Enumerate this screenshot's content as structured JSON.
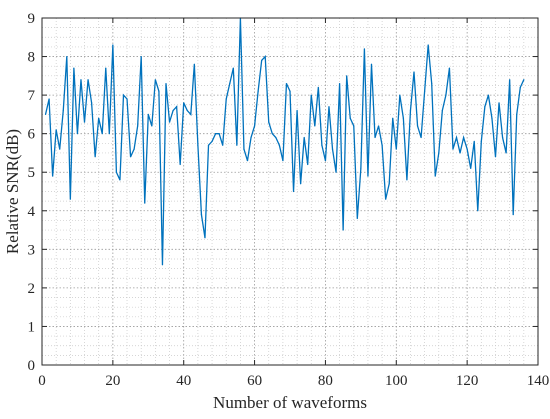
{
  "chart_data": {
    "type": "line",
    "title": "",
    "xlabel": "Number of waveforms",
    "ylabel": "Relative SNR(dB)",
    "xlim": [
      0,
      140
    ],
    "ylim": [
      0,
      9
    ],
    "x_ticks": [
      0,
      20,
      40,
      60,
      80,
      100,
      120,
      140
    ],
    "y_ticks": [
      0,
      1,
      2,
      3,
      4,
      5,
      6,
      7,
      8,
      9
    ],
    "x_minor_step": 4,
    "y_minor_step": 0.25,
    "grid": "major-and-minor-dotted",
    "legend": "none",
    "series": [
      {
        "color": "#0072BD",
        "x": [
          1,
          2,
          3,
          4,
          5,
          6,
          7,
          8,
          9,
          10,
          11,
          12,
          13,
          14,
          15,
          16,
          17,
          18,
          19,
          20,
          21,
          22,
          23,
          24,
          25,
          26,
          27,
          28,
          29,
          30,
          31,
          32,
          33,
          34,
          35,
          36,
          37,
          38,
          39,
          40,
          41,
          42,
          43,
          44,
          45,
          46,
          47,
          48,
          49,
          50,
          51,
          52,
          53,
          54,
          55,
          56,
          57,
          58,
          59,
          60,
          61,
          62,
          63,
          64,
          65,
          66,
          67,
          68,
          69,
          70,
          71,
          72,
          73,
          74,
          75,
          76,
          77,
          78,
          79,
          80,
          81,
          82,
          83,
          84,
          85,
          86,
          87,
          88,
          89,
          90,
          91,
          92,
          93,
          94,
          95,
          96,
          97,
          98,
          99,
          100,
          101,
          102,
          103,
          104,
          105,
          106,
          107,
          108,
          109,
          110,
          111,
          112,
          113,
          114,
          115,
          116,
          117,
          118,
          119,
          120,
          121,
          122,
          123,
          124,
          125,
          126,
          127,
          128,
          129,
          130,
          131,
          132,
          133,
          134,
          135,
          136
        ],
        "values": [
          6.5,
          6.9,
          4.9,
          6.1,
          5.6,
          6.6,
          8.0,
          4.3,
          7.7,
          6.0,
          7.4,
          6.3,
          7.4,
          6.8,
          5.4,
          6.4,
          6.0,
          7.7,
          6.0,
          8.3,
          5.0,
          4.8,
          7.0,
          6.9,
          5.4,
          5.6,
          6.2,
          8.0,
          4.2,
          6.5,
          6.2,
          7.4,
          7.1,
          2.6,
          7.3,
          6.3,
          6.6,
          6.7,
          5.2,
          6.8,
          6.6,
          6.5,
          7.8,
          5.7,
          3.9,
          3.3,
          5.7,
          5.8,
          6.0,
          6.0,
          5.7,
          6.9,
          7.3,
          7.7,
          5.7,
          9.0,
          5.6,
          5.3,
          5.9,
          6.2,
          7.1,
          7.9,
          8.0,
          6.3,
          6.0,
          5.9,
          5.7,
          5.3,
          7.3,
          7.1,
          4.5,
          6.6,
          4.7,
          5.9,
          5.2,
          7.0,
          6.2,
          7.2,
          5.7,
          5.3,
          6.7,
          5.6,
          5.0,
          7.3,
          3.5,
          7.5,
          6.4,
          6.2,
          3.8,
          5.1,
          8.2,
          4.9,
          7.8,
          5.9,
          6.2,
          5.7,
          4.3,
          4.7,
          6.4,
          5.6,
          7.0,
          6.4,
          4.8,
          6.6,
          7.6,
          6.2,
          5.9,
          7.1,
          8.3,
          7.3,
          4.9,
          5.5,
          6.6,
          7.0,
          7.7,
          5.6,
          5.9,
          5.5,
          5.9,
          5.6,
          5.1,
          5.8,
          4.0,
          5.8,
          6.7,
          7.0,
          6.4,
          5.4,
          6.8,
          5.9,
          5.5,
          7.4,
          3.9,
          6.5,
          7.2,
          7.4
        ]
      }
    ]
  }
}
